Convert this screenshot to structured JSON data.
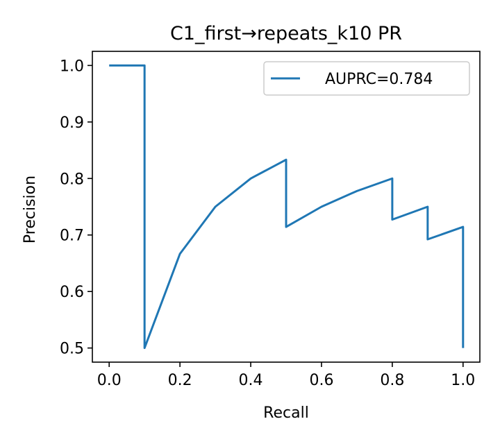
{
  "chart_data": {
    "type": "line",
    "title": "C1_first→repeats_k10 PR",
    "xlabel": "Recall",
    "ylabel": "Precision",
    "xlim": [
      -0.0475,
      1.0475
    ],
    "ylim": [
      0.475,
      1.025
    ],
    "xticks": [
      0.0,
      0.2,
      0.4,
      0.6,
      0.8,
      1.0
    ],
    "xtick_labels": [
      "0.0",
      "0.2",
      "0.4",
      "0.6",
      "0.8",
      "1.0"
    ],
    "yticks": [
      0.5,
      0.6,
      0.7,
      0.8,
      0.9,
      1.0
    ],
    "ytick_labels": [
      "0.5",
      "0.6",
      "0.7",
      "0.8",
      "0.9",
      "1.0"
    ],
    "legend_position": "top-right",
    "series": [
      {
        "name": "AUPRC=0.784",
        "color": "#1f77b4",
        "x": [
          0.0,
          0.1,
          0.1,
          0.2,
          0.3,
          0.4,
          0.5,
          0.5,
          0.6,
          0.7,
          0.8,
          0.8,
          0.9,
          0.9,
          1.0,
          1.0
        ],
        "y": [
          1.0,
          1.0,
          0.5,
          0.6667,
          0.75,
          0.8,
          0.8333,
          0.7143,
          0.75,
          0.7778,
          0.8,
          0.7273,
          0.75,
          0.6923,
          0.7143,
          0.5
        ]
      }
    ]
  }
}
